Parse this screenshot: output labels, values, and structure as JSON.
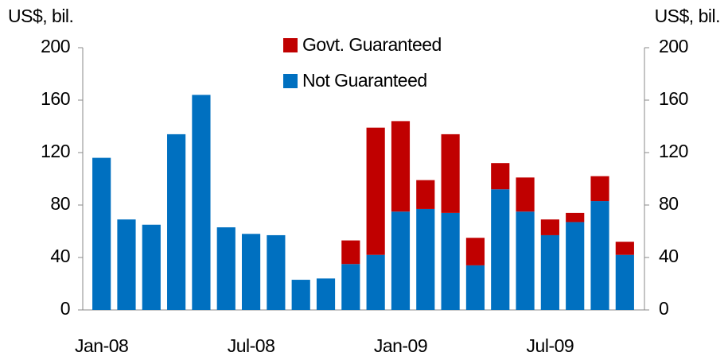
{
  "chart_data": {
    "type": "bar",
    "stacked": true,
    "y_label": "US$, bil.",
    "y2_label": "US$, bil.",
    "categories": [
      "Jan-08",
      null,
      null,
      null,
      null,
      null,
      "Jul-08",
      null,
      null,
      null,
      null,
      null,
      "Jan-09",
      null,
      null,
      null,
      null,
      null,
      "Jul-09",
      null,
      null,
      null
    ],
    "series": [
      {
        "name": "Not Guaranteed",
        "color": "#0070c0",
        "values": [
          116,
          69,
          65,
          134,
          164,
          63,
          58,
          57,
          23,
          24,
          35,
          42,
          75,
          77,
          74,
          34,
          92,
          75,
          57,
          67,
          83,
          42
        ]
      },
      {
        "name": "Govt. Guaranteed",
        "color": "#c00000",
        "values": [
          0,
          0,
          0,
          0,
          0,
          0,
          0,
          0,
          0,
          0,
          18,
          97,
          69,
          22,
          60,
          21,
          20,
          26,
          12,
          7,
          19,
          10
        ]
      }
    ],
    "ylim": [
      0,
      200
    ],
    "yticks": [
      0,
      40,
      80,
      120,
      160,
      200
    ],
    "y2lim": [
      0,
      200
    ],
    "y2ticks": [
      0,
      40,
      80,
      120,
      160,
      200
    ],
    "grid": false,
    "legend": "top"
  }
}
